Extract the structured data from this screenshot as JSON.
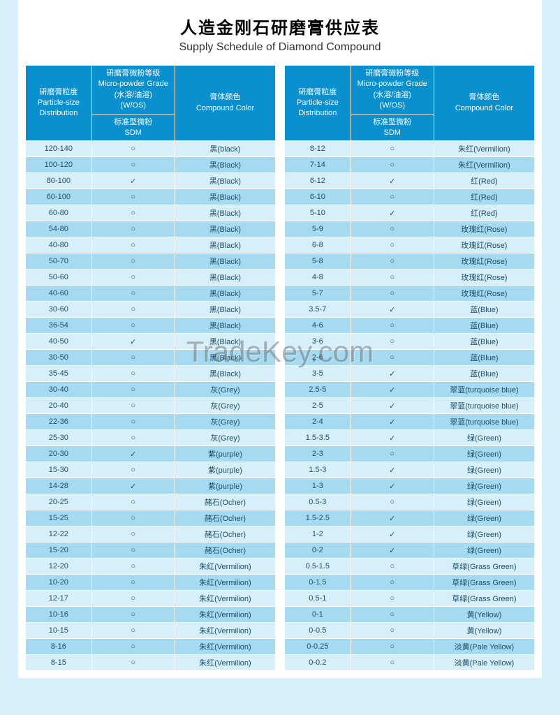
{
  "title_cn": "人造金刚石研磨膏供应表",
  "title_en": "Supply Schedule of Diamond Compound",
  "watermark": "TradeKey.com",
  "headers": {
    "dist_cn": "研磨膏粒度",
    "dist_en1": "Particle-size",
    "dist_en2": "Distribution",
    "grade_cn1": "研磨膏微粉等级",
    "grade_en": "Micro-powder Grade",
    "grade_cn2": "(水溶/油溶)",
    "grade_w": "(W/OS)",
    "sdm_cn": "标准型微粉",
    "sdm_en": "SDM",
    "color_cn": "膏体颜色",
    "color_en": "Compound Color"
  },
  "marks": {
    "tick": "✓",
    "circle": "○"
  },
  "left": [
    {
      "d": "120-140",
      "m": "○",
      "c": "黑(black)"
    },
    {
      "d": "100-120",
      "m": "○",
      "c": "黑(Black)"
    },
    {
      "d": "80-100",
      "m": "✓",
      "c": "黑(Black)"
    },
    {
      "d": "60-100",
      "m": "○",
      "c": "黑(Black)"
    },
    {
      "d": "60-80",
      "m": "○",
      "c": "黑(Black)"
    },
    {
      "d": "54-80",
      "m": "○",
      "c": "黑(Black)"
    },
    {
      "d": "40-80",
      "m": "○",
      "c": "黑(Black)"
    },
    {
      "d": "50-70",
      "m": "○",
      "c": "黑(Black)"
    },
    {
      "d": "50-60",
      "m": "○",
      "c": "黑(Black)"
    },
    {
      "d": "40-60",
      "m": "○",
      "c": "黑(Black)"
    },
    {
      "d": "30-60",
      "m": "○",
      "c": "黑(Black)"
    },
    {
      "d": "36-54",
      "m": "○",
      "c": "黑(Black)"
    },
    {
      "d": "40-50",
      "m": "✓",
      "c": "黑(Black)"
    },
    {
      "d": "30-50",
      "m": "○",
      "c": "黑(Black)"
    },
    {
      "d": "35-45",
      "m": "○",
      "c": "黑(Black)"
    },
    {
      "d": "30-40",
      "m": "○",
      "c": "灰(Grey)"
    },
    {
      "d": "20-40",
      "m": "○",
      "c": "灰(Grey)"
    },
    {
      "d": "22-36",
      "m": "○",
      "c": "灰(Grey)"
    },
    {
      "d": "25-30",
      "m": "○",
      "c": "灰(Grey)"
    },
    {
      "d": "20-30",
      "m": "✓",
      "c": "紫(purple)"
    },
    {
      "d": "15-30",
      "m": "○",
      "c": "紫(purple)"
    },
    {
      "d": "14-28",
      "m": "✓",
      "c": "紫(purple)"
    },
    {
      "d": "20-25",
      "m": "○",
      "c": "赭石(Ocher)"
    },
    {
      "d": "15-25",
      "m": "○",
      "c": "赭石(Ocher)"
    },
    {
      "d": "12-22",
      "m": "○",
      "c": "赭石(Ocher)"
    },
    {
      "d": "15-20",
      "m": "○",
      "c": "赭石(Ocher)"
    },
    {
      "d": "12-20",
      "m": "○",
      "c": "朱红(Vermilion)"
    },
    {
      "d": "10-20",
      "m": "○",
      "c": "朱红(Vermilion)"
    },
    {
      "d": "12-17",
      "m": "○",
      "c": "朱红(Vermilion)"
    },
    {
      "d": "10-16",
      "m": "○",
      "c": "朱红(Vermilion)"
    },
    {
      "d": "10-15",
      "m": "○",
      "c": "朱红(Vermilion)"
    },
    {
      "d": "8-16",
      "m": "○",
      "c": "朱红(Vermilion)"
    },
    {
      "d": "8-15",
      "m": "○",
      "c": "朱红(Vermilion)"
    }
  ],
  "right": [
    {
      "d": "8-12",
      "m": "○",
      "c": "朱红(Vermilion)"
    },
    {
      "d": "7-14",
      "m": "○",
      "c": "朱红(Vermilion)"
    },
    {
      "d": "6-12",
      "m": "✓",
      "c": "红(Red)"
    },
    {
      "d": "6-10",
      "m": "○",
      "c": "红(Red)"
    },
    {
      "d": "5-10",
      "m": "✓",
      "c": "红(Red)"
    },
    {
      "d": "5-9",
      "m": "○",
      "c": "玫瑰红(Rose)"
    },
    {
      "d": "6-8",
      "m": "○",
      "c": "玫瑰红(Rose)"
    },
    {
      "d": "5-8",
      "m": "○",
      "c": "玫瑰红(Rose)"
    },
    {
      "d": "4-8",
      "m": "○",
      "c": "玫瑰红(Rose)"
    },
    {
      "d": "5-7",
      "m": "○",
      "c": "玫瑰红(Rose)"
    },
    {
      "d": "3.5-7",
      "m": "✓",
      "c": "蓝(Blue)"
    },
    {
      "d": "4-6",
      "m": "○",
      "c": "蓝(Blue)"
    },
    {
      "d": "3-6",
      "m": "○",
      "c": "蓝(Blue)"
    },
    {
      "d": "2-6",
      "m": "○",
      "c": "蓝(Blue)"
    },
    {
      "d": "3-5",
      "m": "✓",
      "c": "蓝(Blue)"
    },
    {
      "d": "2.5-5",
      "m": "✓",
      "c": "翠蓝(turquoise blue)"
    },
    {
      "d": "2-5",
      "m": "✓",
      "c": "翠蓝(turquoise blue)"
    },
    {
      "d": "2-4",
      "m": "✓",
      "c": "翠蓝(turquoise blue)"
    },
    {
      "d": "1.5-3.5",
      "m": "✓",
      "c": "绿(Green)"
    },
    {
      "d": "2-3",
      "m": "○",
      "c": "绿(Green)"
    },
    {
      "d": "1.5-3",
      "m": "✓",
      "c": "绿(Green)"
    },
    {
      "d": "1-3",
      "m": "✓",
      "c": "绿(Green)"
    },
    {
      "d": "0.5-3",
      "m": "○",
      "c": "绿(Green)"
    },
    {
      "d": "1.5-2.5",
      "m": "✓",
      "c": "绿(Green)"
    },
    {
      "d": "1-2",
      "m": "✓",
      "c": "绿(Green)"
    },
    {
      "d": "0-2",
      "m": "✓",
      "c": "绿(Green)"
    },
    {
      "d": "0.5-1.5",
      "m": "○",
      "c": "草绿(Grass Green)"
    },
    {
      "d": "0-1.5",
      "m": "○",
      "c": "草绿(Grass Green)"
    },
    {
      "d": "0.5-1",
      "m": "○",
      "c": "草绿(Grass Green)"
    },
    {
      "d": "0-1",
      "m": "○",
      "c": "黄(Yellow)"
    },
    {
      "d": "0-0.5",
      "m": "○",
      "c": "黄(Yellow)"
    },
    {
      "d": "0-0.25",
      "m": "○",
      "c": "淡黄(Pale Yellow)"
    },
    {
      "d": "0-0.2",
      "m": "○",
      "c": "淡黄(Pale Yellow)"
    }
  ]
}
